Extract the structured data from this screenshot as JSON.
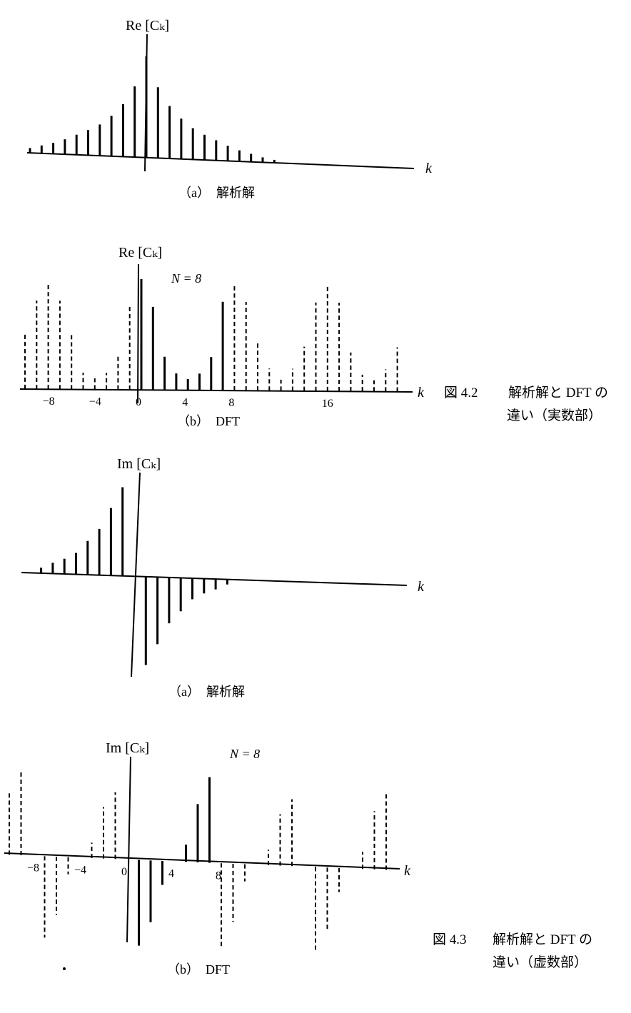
{
  "figure_4_2": {
    "caption_number": "図 4.2",
    "caption_line1": "解析解と DFT の",
    "caption_line2": "違い（実数部）"
  },
  "figure_4_3": {
    "caption_number": "図 4.3",
    "caption_line1": "解析解と DFT の",
    "caption_line2": "違い（虚数部）"
  },
  "labels": {
    "re_axis": "Re [Cₖ]",
    "im_axis": "Im [Cₖ]",
    "k_axis": "k",
    "sub_a": "（a）　解析解",
    "sub_b": "（b）　DFT",
    "n_eq_8": "N = 8"
  },
  "chart_data": [
    {
      "id": "re-analytic",
      "type": "bar",
      "title": "（a）　解析解",
      "ylabel": "Re [Cₖ]",
      "xlabel": "k",
      "x": [
        -10,
        -9,
        -8,
        -7,
        -6,
        -5,
        -4,
        -3,
        -2,
        -1,
        0,
        1,
        2,
        3,
        4,
        5,
        6,
        7,
        8,
        9,
        10,
        11
      ],
      "values": [
        0.05,
        0.08,
        0.11,
        0.15,
        0.2,
        0.25,
        0.31,
        0.4,
        0.52,
        0.7,
        1.0,
        0.7,
        0.52,
        0.4,
        0.31,
        0.25,
        0.2,
        0.15,
        0.11,
        0.08,
        0.05,
        0.03
      ],
      "style": "solid"
    },
    {
      "id": "re-dft",
      "type": "bar",
      "title": "（b）　DFT",
      "ylabel": "Re [Cₖ]",
      "xlabel": "k",
      "annotation": "N = 8",
      "tick_labels": [
        "−8",
        "−4",
        "0",
        "4",
        "8",
        "16"
      ],
      "tick_values": [
        -8,
        -4,
        0,
        4,
        8,
        16
      ],
      "x": [
        -10,
        -9,
        -8,
        -7,
        -6,
        -5,
        -4,
        -3,
        -2,
        -1,
        0,
        1,
        2,
        3,
        4,
        5,
        6,
        7,
        8,
        9,
        10,
        11,
        12,
        13,
        14,
        15,
        16,
        17,
        18,
        19,
        20,
        21,
        22
      ],
      "values": [
        0.5,
        0.8,
        0.95,
        0.8,
        0.5,
        0.15,
        0.1,
        0.15,
        0.3,
        0.75,
        1.0,
        0.75,
        0.3,
        0.15,
        0.1,
        0.15,
        0.3,
        0.8,
        0.95,
        0.8,
        0.45,
        0.2,
        0.1,
        0.2,
        0.4,
        0.8,
        0.95,
        0.8,
        0.35,
        0.15,
        0.1,
        0.2,
        0.4
      ],
      "solid_range": [
        0,
        7
      ],
      "style": "dashed outside 0–7"
    },
    {
      "id": "im-analytic",
      "type": "bar",
      "title": "（a）　解析解",
      "ylabel": "Im [Cₖ]",
      "xlabel": "k",
      "x": [
        -8,
        -7,
        -6,
        -5,
        -4,
        -3,
        -2,
        -1,
        1,
        2,
        3,
        4,
        5,
        6,
        7,
        8
      ],
      "values": [
        0.06,
        0.12,
        0.17,
        0.24,
        0.38,
        0.52,
        0.76,
        1.0,
        -1.0,
        -0.76,
        -0.52,
        -0.38,
        -0.24,
        -0.17,
        -0.12,
        -0.06
      ],
      "style": "solid"
    },
    {
      "id": "im-dft",
      "type": "bar",
      "title": "（b）　DFT",
      "ylabel": "Im [Cₖ]",
      "xlabel": "k",
      "annotation": "N = 8",
      "tick_labels": [
        "−8",
        "−4",
        "0",
        "4",
        "8"
      ],
      "tick_values": [
        -8,
        -4,
        0,
        4,
        8
      ],
      "x": [
        -10,
        -9,
        -8,
        -7,
        -6,
        -5,
        -4,
        -3,
        -2,
        -1,
        0,
        1,
        2,
        3,
        4,
        5,
        6,
        7,
        8,
        9,
        10,
        11,
        12,
        13,
        14,
        15,
        16,
        17,
        18,
        19,
        20,
        21,
        22
      ],
      "values": [
        0.72,
        1.0,
        0.0,
        -0.95,
        -0.68,
        -0.2,
        0.0,
        0.18,
        0.6,
        0.78,
        0.0,
        -1.0,
        -0.72,
        -0.28,
        0.0,
        0.2,
        0.68,
        1.0,
        -1.0,
        -0.68,
        -0.2,
        0.0,
        0.18,
        0.6,
        0.78,
        0.0,
        -1.0,
        -0.72,
        -0.28,
        0.0,
        0.2,
        0.68,
        0.9
      ],
      "solid_range": [
        0,
        7
      ],
      "style": "dashed outside 0–7"
    }
  ]
}
